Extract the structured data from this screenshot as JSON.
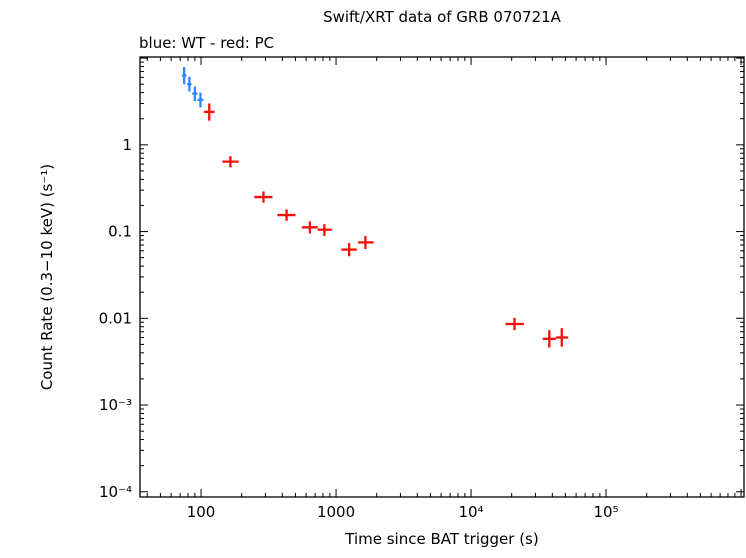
{
  "page": {
    "background": "#ffffff"
  },
  "chart_data": {
    "type": "scatter",
    "title": "Swift/XRT data of GRB 070721A",
    "subtitle": "blue: WT - red: PC",
    "xlabel": "Time since BAT trigger (s)",
    "ylabel": "Count Rate (0.3−10 keV) (s⁻¹)",
    "x_scale": "log",
    "y_scale": "log",
    "grid": false,
    "x_axis": {
      "min": 35.3,
      "max": 1052000,
      "ticks": [
        {
          "value": 100,
          "label": "100"
        },
        {
          "value": 1000,
          "label": "1000"
        },
        {
          "value": 10000,
          "label": "10⁴"
        },
        {
          "value": 100000,
          "label": "10⁵"
        }
      ]
    },
    "y_axis": {
      "min": 8.7e-05,
      "max": 10.3,
      "ticks": [
        {
          "value": 1,
          "label": "1"
        },
        {
          "value": 0.1,
          "label": "0.1"
        },
        {
          "value": 0.01,
          "label": "0.01"
        },
        {
          "value": 0.001,
          "label": "10⁻³"
        },
        {
          "value": 0.0001,
          "label": "10⁻⁴"
        }
      ]
    },
    "series": [
      {
        "name": "WT",
        "color": "#2e86ff",
        "points": [
          {
            "t": 75,
            "t_lo": 72,
            "t_hi": 78,
            "rate": 6.3,
            "rate_lo": 5.0,
            "rate_hi": 7.9
          },
          {
            "t": 82,
            "t_lo": 79,
            "t_hi": 85,
            "rate": 5.0,
            "rate_lo": 4.1,
            "rate_hi": 6.1
          },
          {
            "t": 90,
            "t_lo": 86,
            "t_hi": 94,
            "rate": 3.9,
            "rate_lo": 3.2,
            "rate_hi": 4.7
          },
          {
            "t": 99,
            "t_lo": 94,
            "t_hi": 104,
            "rate": 3.3,
            "rate_lo": 2.7,
            "rate_hi": 4.0
          }
        ]
      },
      {
        "name": "PC",
        "color": "#fb0d07",
        "points": [
          {
            "t": 115,
            "t_lo": 105,
            "t_hi": 126,
            "rate": 2.4,
            "rate_lo": 1.9,
            "rate_hi": 3.0
          },
          {
            "t": 165,
            "t_lo": 144,
            "t_hi": 190,
            "rate": 0.64,
            "rate_lo": 0.55,
            "rate_hi": 0.74
          },
          {
            "t": 290,
            "t_lo": 248,
            "t_hi": 338,
            "rate": 0.25,
            "rate_lo": 0.215,
            "rate_hi": 0.29
          },
          {
            "t": 430,
            "t_lo": 368,
            "t_hi": 500,
            "rate": 0.155,
            "rate_lo": 0.133,
            "rate_hi": 0.18
          },
          {
            "t": 640,
            "t_lo": 558,
            "t_hi": 732,
            "rate": 0.112,
            "rate_lo": 0.095,
            "rate_hi": 0.131
          },
          {
            "t": 820,
            "t_lo": 732,
            "t_hi": 930,
            "rate": 0.105,
            "rate_lo": 0.089,
            "rate_hi": 0.122
          },
          {
            "t": 1250,
            "t_lo": 1095,
            "t_hi": 1425,
            "rate": 0.062,
            "rate_lo": 0.052,
            "rate_hi": 0.074
          },
          {
            "t": 1650,
            "t_lo": 1455,
            "t_hi": 1900,
            "rate": 0.075,
            "rate_lo": 0.063,
            "rate_hi": 0.089
          },
          {
            "t": 21000,
            "t_lo": 18000,
            "t_hi": 24600,
            "rate": 0.0086,
            "rate_lo": 0.0073,
            "rate_hi": 0.0101
          },
          {
            "t": 38000,
            "t_lo": 34000,
            "t_hi": 42500,
            "rate": 0.0058,
            "rate_lo": 0.0046,
            "rate_hi": 0.0073
          },
          {
            "t": 47000,
            "t_lo": 42500,
            "t_hi": 52500,
            "rate": 0.006,
            "rate_lo": 0.0047,
            "rate_hi": 0.0077
          }
        ]
      }
    ]
  }
}
